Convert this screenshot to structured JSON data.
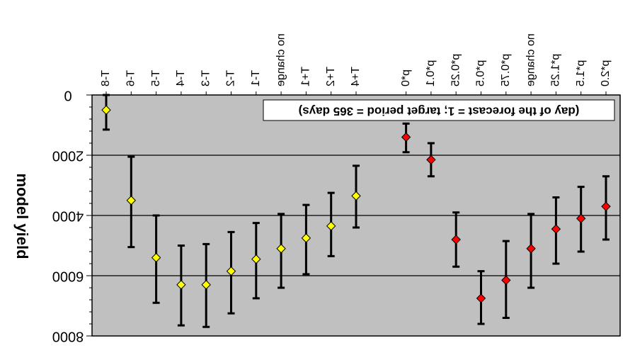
{
  "chart_data": {
    "type": "scatter",
    "title": "",
    "xlabel": "",
    "ylabel": "model yield",
    "annotation": "(day of the forecast = 1; target period = 365 days)",
    "ylim": [
      0,
      8000
    ],
    "yticks": [
      "0",
      "2000",
      "4000",
      "6000",
      "8000"
    ],
    "grid": true,
    "colors": {
      "plot_bg": "#c0c0c0",
      "yellow": "#ffff00",
      "red": "#ff0000",
      "error_bar": "#000000",
      "grid": "#000000"
    },
    "categories": [
      "T-8",
      "T-6",
      "T-5",
      "T-4",
      "T-3",
      "T-2",
      "T-1",
      "no change",
      "T+1",
      "T+2",
      "T+4",
      "",
      "p*0",
      "p*0.1",
      "p*0.25",
      "p*0.5",
      "p*0.75",
      "no change",
      "p*1.25",
      "p*1.5",
      "p*2.0"
    ],
    "series": [
      {
        "color": "yellow",
        "points": [
          {
            "category": "T-8",
            "y": 500,
            "low": 0,
            "high": 1150
          },
          {
            "category": "T-6",
            "y": 3500,
            "low": 2050,
            "high": 5050
          },
          {
            "category": "T-5",
            "y": 5400,
            "low": 4000,
            "high": 6900
          },
          {
            "category": "T-4",
            "y": 6300,
            "low": 5000,
            "high": 7650
          },
          {
            "category": "T-3",
            "y": 6300,
            "low": 4950,
            "high": 7700
          },
          {
            "category": "T-2",
            "y": 5850,
            "low": 4550,
            "high": 7250
          },
          {
            "category": "T-1",
            "y": 5450,
            "low": 4250,
            "high": 6750
          },
          {
            "category": "no change",
            "y": 5100,
            "low": 3950,
            "high": 6400
          },
          {
            "category": "T+1",
            "y": 4750,
            "low": 3650,
            "high": 5950
          },
          {
            "category": "T+2",
            "y": 4350,
            "low": 3250,
            "high": 5350
          },
          {
            "category": "T+4",
            "y": 3350,
            "low": 2350,
            "high": 4400
          }
        ]
      },
      {
        "color": "red",
        "points": [
          {
            "category": "p*0",
            "y": 1400,
            "low": 950,
            "high": 1900
          },
          {
            "category": "p*0.1",
            "y": 2150,
            "low": 1600,
            "high": 2700
          },
          {
            "category": "p*0.25",
            "y": 4800,
            "low": 3900,
            "high": 5700
          },
          {
            "category": "p*0.5",
            "y": 6750,
            "low": 5850,
            "high": 7600
          },
          {
            "category": "p*0.75",
            "y": 6150,
            "low": 4850,
            "high": 7400
          },
          {
            "category": "no change",
            "y": 5100,
            "low": 3950,
            "high": 6400
          },
          {
            "category": "p*1.25",
            "y": 4450,
            "low": 3400,
            "high": 5600
          },
          {
            "category": "p*1.5",
            "y": 4100,
            "low": 3050,
            "high": 5200
          },
          {
            "category": "p*2.0",
            "y": 3700,
            "low": 2700,
            "high": 4800
          }
        ]
      }
    ]
  }
}
